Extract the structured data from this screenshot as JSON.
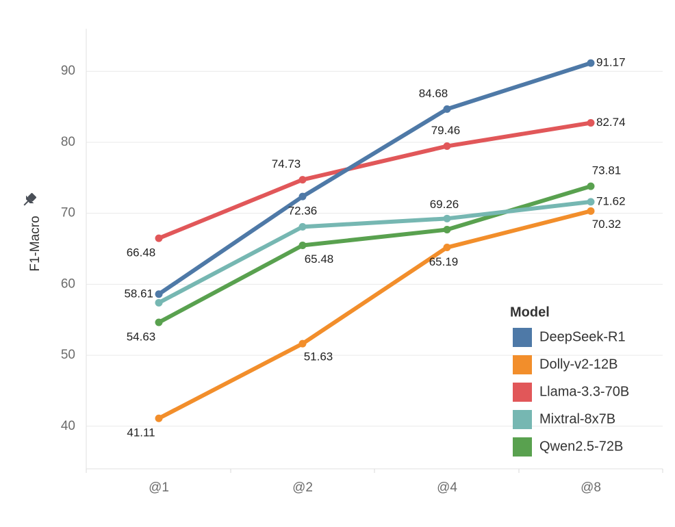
{
  "chart_data": {
    "type": "line",
    "title": "",
    "xlabel": "",
    "ylabel": "F1-Macro",
    "categories": [
      "@1",
      "@2",
      "@4",
      "@8"
    ],
    "ylim": [
      34,
      96
    ],
    "y_ticks": [
      40,
      50,
      60,
      70,
      80,
      90
    ],
    "grid": true,
    "legend": {
      "title": "Model",
      "placement": "bottom-right"
    },
    "series": [
      {
        "name": "DeepSeek-R1",
        "color": "#4e79a7",
        "values": [
          58.61,
          72.36,
          84.68,
          91.17
        ],
        "labels": [
          "58.61",
          "72.36",
          "84.68",
          "91.17"
        ]
      },
      {
        "name": "Dolly-v2-12B",
        "color": "#f28e2b",
        "values": [
          41.11,
          51.63,
          65.19,
          70.32
        ],
        "labels": [
          "41.11",
          "51.63",
          "65.19",
          "70.32"
        ]
      },
      {
        "name": "Llama-3.3-70B",
        "color": "#e15759",
        "values": [
          66.48,
          74.73,
          79.46,
          82.74
        ],
        "labels": [
          "66.48",
          "74.73",
          "79.46",
          "82.74"
        ]
      },
      {
        "name": "Mixtral-8x7B",
        "color": "#76b7b2",
        "values": [
          57.4,
          68.1,
          69.26,
          71.62
        ],
        "labels": [
          "",
          "",
          "69.26",
          "71.62"
        ]
      },
      {
        "name": "Qwen2.5-72B",
        "color": "#59a14f",
        "values": [
          54.63,
          65.48,
          67.7,
          73.81
        ],
        "labels": [
          "54.63",
          "65.48",
          "",
          "73.81"
        ]
      }
    ]
  }
}
